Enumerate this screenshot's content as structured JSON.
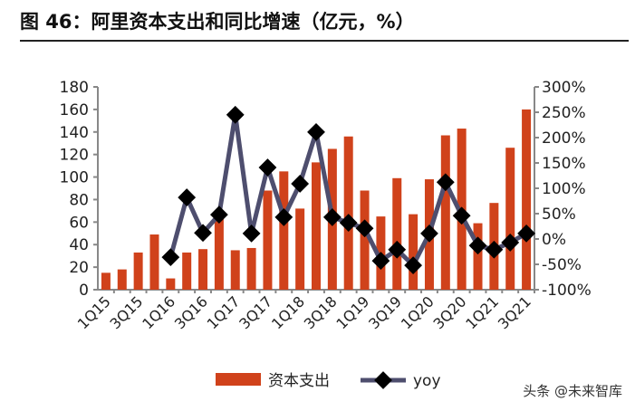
{
  "title": "图 46：阿里资本支出和同比增速（亿元，%）",
  "watermark": "头条 @未来智库",
  "chart_data": {
    "type": "bar+line",
    "title": "图 46：阿里资本支出和同比增速（亿元，%）",
    "categories": [
      "1Q15",
      "2Q15",
      "3Q15",
      "4Q15",
      "1Q16",
      "2Q16",
      "3Q16",
      "4Q16",
      "1Q17",
      "2Q17",
      "3Q17",
      "4Q17",
      "1Q18",
      "2Q18",
      "3Q18",
      "4Q18",
      "1Q19",
      "2Q19",
      "3Q19",
      "4Q19",
      "1Q20",
      "2Q20",
      "3Q20",
      "4Q20",
      "1Q21",
      "2Q21",
      "3Q21"
    ],
    "x_tick_labels": [
      "1Q15",
      "3Q15",
      "1Q16",
      "3Q16",
      "1Q17",
      "3Q17",
      "1Q18",
      "3Q18",
      "1Q19",
      "3Q19",
      "1Q20",
      "3Q20",
      "1Q21",
      "3Q21"
    ],
    "series": [
      {
        "name": "资本支出",
        "type": "bar",
        "axis": "left",
        "color": "#d0421b",
        "values": [
          15,
          18,
          33,
          49,
          10,
          33,
          36,
          66,
          35,
          37,
          88,
          105,
          72,
          113,
          125,
          136,
          88,
          65,
          99,
          67,
          98,
          137,
          143,
          59,
          77,
          126,
          160
        ]
      },
      {
        "name": "yoy",
        "type": "line",
        "axis": "right",
        "color": "#4e4e6e",
        "values": [
          null,
          null,
          null,
          null,
          -36,
          82,
          12,
          48,
          245,
          11,
          141,
          43,
          109,
          211,
          43,
          32,
          21,
          -43,
          -21,
          -52,
          11,
          112,
          46,
          -13,
          -21,
          -7,
          11
        ]
      }
    ],
    "left_axis": {
      "range": [
        0,
        180
      ],
      "ticks": [
        "0",
        "20",
        "40",
        "60",
        "80",
        "100",
        "120",
        "140",
        "160",
        "180"
      ]
    },
    "right_axis": {
      "range": [
        -100,
        300
      ],
      "ticks": [
        "-100%",
        "-50%",
        "0%",
        "50%",
        "100%",
        "150%",
        "200%",
        "250%",
        "300%"
      ]
    },
    "legend": {
      "position": "bottom",
      "items": [
        "资本支出",
        "yoy"
      ]
    },
    "grid": false
  }
}
